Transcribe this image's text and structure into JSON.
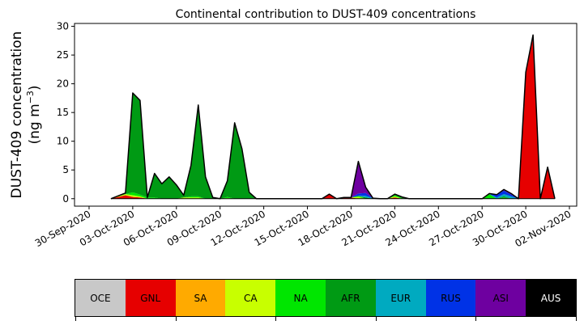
{
  "chart_data": {
    "type": "area",
    "stacked": true,
    "title": "Continental contribution to DUST-409 concentrations",
    "ylabel_line1": "DUST-409 concentration",
    "ylabel_line2": "(ng m",
    "ylabel_sup": "−3",
    "ylabel_line2_end": ")",
    "ylim": [
      -1.3,
      30.5
    ],
    "yticks": [
      0,
      5,
      10,
      15,
      20,
      25,
      30
    ],
    "xlim": [
      "2020-09-29T00:00",
      "2020-11-02T12:00"
    ],
    "xticks": [
      "2020-09-30",
      "2020-10-03",
      "2020-10-06",
      "2020-10-09",
      "2020-10-12",
      "2020-10-15",
      "2020-10-18",
      "2020-10-21",
      "2020-10-24",
      "2020-10-27",
      "2020-10-30",
      "2020-11-02"
    ],
    "xtick_labels": [
      "30-Sep-2020",
      "03-Oct-2020",
      "06-Oct-2020",
      "09-Oct-2020",
      "12-Oct-2020",
      "15-Oct-2020",
      "18-Oct-2020",
      "21-Oct-2020",
      "24-Oct-2020",
      "27-Oct-2020",
      "30-Oct-2020",
      "02-Nov-2020"
    ],
    "grid": false,
    "x": [
      "2020-10-01T12:00",
      "2020-10-02T12:00",
      "2020-10-03T00:00",
      "2020-10-03T12:00",
      "2020-10-04T00:00",
      "2020-10-04T12:00",
      "2020-10-05T00:00",
      "2020-10-05T12:00",
      "2020-10-06T00:00",
      "2020-10-06T12:00",
      "2020-10-07T00:00",
      "2020-10-07T12:00",
      "2020-10-08T00:00",
      "2020-10-08T12:00",
      "2020-10-09T00:00",
      "2020-10-09T12:00",
      "2020-10-10T00:00",
      "2020-10-10T12:00",
      "2020-10-11T00:00",
      "2020-10-11T12:00",
      "2020-10-12T00:00",
      "2020-10-12T12:00",
      "2020-10-13T00:00",
      "2020-10-13T12:00",
      "2020-10-14T00:00",
      "2020-10-14T12:00",
      "2020-10-15T00:00",
      "2020-10-15T12:00",
      "2020-10-16T00:00",
      "2020-10-16T12:00",
      "2020-10-17T00:00",
      "2020-10-17T12:00",
      "2020-10-18T00:00",
      "2020-10-18T12:00",
      "2020-10-19T00:00",
      "2020-10-19T12:00",
      "2020-10-20T00:00",
      "2020-10-20T12:00",
      "2020-10-21T00:00",
      "2020-10-21T12:00",
      "2020-10-22T00:00",
      "2020-10-22T12:00",
      "2020-10-23T00:00",
      "2020-10-24T00:00",
      "2020-10-25T00:00",
      "2020-10-26T00:00",
      "2020-10-27T00:00",
      "2020-10-27T12:00",
      "2020-10-28T00:00",
      "2020-10-28T12:00",
      "2020-10-29T00:00",
      "2020-10-29T12:00",
      "2020-10-30T00:00",
      "2020-10-30T12:00",
      "2020-10-31T00:00",
      "2020-10-31T12:00",
      "2020-11-01T00:00"
    ],
    "series": [
      {
        "name": "OCE",
        "color": "#c8c8c8",
        "values": [
          0,
          0,
          0,
          0,
          0,
          0,
          0,
          0,
          0,
          0,
          0,
          0,
          0,
          0,
          0,
          0,
          0,
          0,
          0,
          0,
          0,
          0,
          0,
          0,
          0,
          0,
          0,
          0,
          0,
          0,
          0,
          0,
          0,
          0,
          0,
          0,
          0,
          0,
          0,
          0,
          0,
          0,
          0,
          0,
          0,
          0,
          0,
          0,
          0,
          0,
          0,
          0,
          0,
          0,
          0,
          0,
          0
        ]
      },
      {
        "name": "GNL",
        "color": "#e60000",
        "values": [
          0,
          0.6,
          0.3,
          0.2,
          0,
          0,
          0,
          0,
          0,
          0,
          0,
          0,
          0,
          0,
          0,
          0,
          0,
          0,
          0,
          0,
          0,
          0,
          0,
          0,
          0,
          0,
          0,
          0,
          0,
          0.7,
          0,
          0.2,
          0.2,
          0,
          0,
          0,
          0,
          0,
          0.2,
          0,
          0,
          0,
          0,
          0,
          0,
          0,
          0,
          0,
          0,
          0,
          0,
          0,
          22,
          28.5,
          0,
          5.5,
          0
        ]
      },
      {
        "name": "SA",
        "color": "#ffaa00",
        "values": [
          0,
          0,
          0,
          0,
          0,
          0,
          0,
          0,
          0,
          0,
          0,
          0,
          0,
          0,
          0,
          0,
          0,
          0,
          0,
          0,
          0,
          0,
          0,
          0,
          0,
          0,
          0,
          0,
          0,
          0,
          0,
          0,
          0,
          0,
          0,
          0,
          0,
          0,
          0,
          0,
          0,
          0,
          0,
          0,
          0,
          0,
          0,
          0,
          0,
          0,
          0,
          0,
          0,
          0,
          0,
          0,
          0
        ]
      },
      {
        "name": "CA",
        "color": "#c8ff00",
        "values": [
          0,
          0.2,
          0.3,
          0.2,
          0,
          0,
          0,
          0,
          0,
          0.2,
          0.2,
          0.2,
          0,
          0,
          0,
          0.1,
          0,
          0,
          0,
          0,
          0,
          0,
          0,
          0,
          0,
          0,
          0,
          0,
          0,
          0,
          0,
          0,
          0,
          0.3,
          0,
          0,
          0,
          0,
          0.2,
          0,
          0,
          0,
          0,
          0,
          0,
          0,
          0,
          0,
          0,
          0,
          0,
          0,
          0,
          0,
          0,
          0,
          0
        ]
      },
      {
        "name": "NA",
        "color": "#00e600",
        "values": [
          0,
          0,
          0.5,
          0.3,
          0.2,
          0.2,
          0,
          0,
          0,
          0,
          0.2,
          0.2,
          0,
          0,
          0,
          0.2,
          0,
          0,
          0,
          0,
          0,
          0,
          0,
          0,
          0,
          0,
          0,
          0,
          0,
          0,
          0,
          0,
          0,
          0.2,
          0,
          0,
          0,
          0,
          0.2,
          0.1,
          0,
          0,
          0,
          0,
          0,
          0,
          0,
          0.8,
          0,
          0.2,
          0,
          0,
          0,
          0,
          0,
          0,
          0
        ]
      },
      {
        "name": "AFR",
        "color": "#009a14",
        "values": [
          0,
          0.2,
          17.3,
          16.4,
          0,
          4.2,
          2.6,
          3.8,
          2.4,
          0.4,
          5.4,
          15.9,
          3.8,
          0.2,
          0,
          2.8,
          13.2,
          8.7,
          1.1,
          0,
          0,
          0,
          0,
          0,
          0,
          0,
          0,
          0,
          0,
          0.1,
          0,
          0,
          0,
          0,
          0.2,
          0,
          0,
          0,
          0.2,
          0.2,
          0,
          0,
          0,
          0,
          0,
          0,
          0,
          0,
          0,
          0.2,
          0,
          0,
          0,
          0,
          0,
          0,
          0
        ]
      },
      {
        "name": "EUR",
        "color": "#00aac0",
        "values": [
          0,
          0,
          0,
          0,
          0,
          0,
          0,
          0,
          0,
          0,
          0,
          0,
          0,
          0,
          0,
          0,
          0,
          0,
          0,
          0,
          0,
          0,
          0,
          0,
          0,
          0,
          0,
          0,
          0,
          0,
          0,
          0,
          0,
          0,
          0.3,
          0.1,
          0,
          0,
          0,
          0,
          0,
          0,
          0,
          0,
          0,
          0,
          0,
          0,
          0.2,
          0.4,
          0.4,
          0,
          0,
          0,
          0,
          0,
          0
        ]
      },
      {
        "name": "RUS",
        "color": "#0032e6",
        "values": [
          0,
          0,
          0,
          0,
          0,
          0,
          0,
          0,
          0,
          0,
          0,
          0,
          0,
          0,
          0,
          0,
          0,
          0,
          0,
          0,
          0,
          0,
          0,
          0,
          0,
          0,
          0,
          0,
          0,
          0,
          0,
          0,
          0,
          0.4,
          0.5,
          0,
          0,
          0,
          0,
          0,
          0,
          0,
          0,
          0,
          0,
          0,
          0,
          0.1,
          0.5,
          0.6,
          0.3,
          0,
          0,
          0,
          0,
          0,
          0
        ]
      },
      {
        "name": "ASI",
        "color": "#6e00a0",
        "values": [
          0,
          0,
          0,
          0,
          0,
          0,
          0,
          0,
          0,
          0,
          0,
          0,
          0,
          0,
          0,
          0,
          0,
          0,
          0,
          0,
          0,
          0,
          0,
          0,
          0,
          0,
          0,
          0,
          0,
          0,
          0,
          0,
          0,
          5.6,
          1.0,
          0,
          0,
          0,
          0,
          0,
          0,
          0,
          0,
          0,
          0,
          0,
          0,
          0,
          0,
          0.2,
          0.2,
          0,
          0,
          0,
          0,
          0,
          0
        ]
      },
      {
        "name": "AUS",
        "color": "#000000",
        "values": [
          0,
          0,
          0,
          0,
          0,
          0,
          0,
          0,
          0,
          0,
          0,
          0,
          0,
          0,
          0,
          0,
          0,
          0,
          0,
          0,
          0,
          0,
          0,
          0,
          0,
          0,
          0,
          0,
          0,
          0,
          0,
          0,
          0,
          0,
          0,
          0,
          0,
          0,
          0,
          0,
          0,
          0,
          0,
          0,
          0,
          0,
          0,
          0,
          0,
          0,
          0,
          0,
          0,
          0,
          0,
          0,
          0
        ]
      }
    ],
    "legend": [
      "OCE",
      "GNL",
      "SA",
      "CA",
      "NA",
      "AFR",
      "EUR",
      "RUS",
      "ASI",
      "AUS"
    ],
    "legend_placement": "bottom"
  }
}
